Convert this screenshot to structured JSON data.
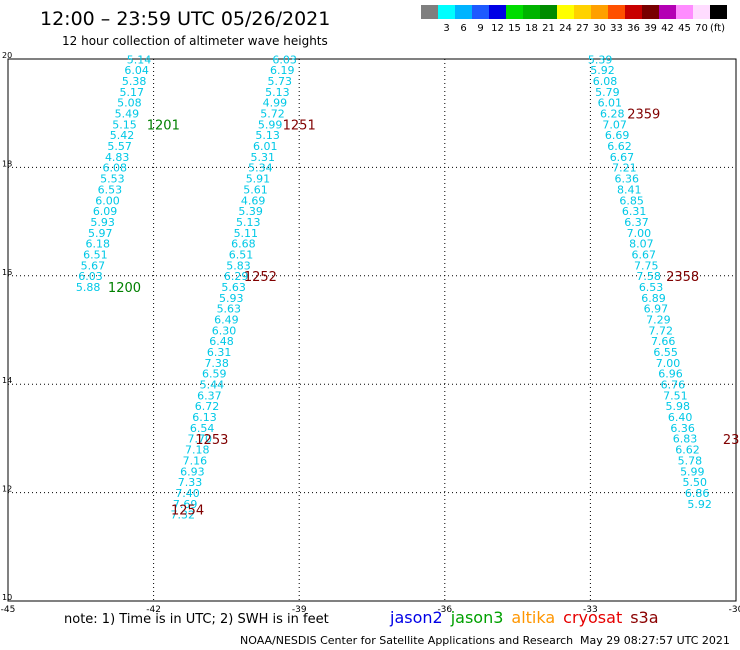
{
  "header": {
    "title": "12:00 – 23:59 UTC 05/26/2021",
    "subtitle": "12 hour collection of altimeter wave heights"
  },
  "colorbar": {
    "unit": "(ft)",
    "swatches": [
      {
        "color": "#7f7f7f",
        "label": ""
      },
      {
        "color": "#00ffff",
        "label": "3"
      },
      {
        "color": "#00b4ff",
        "label": "6"
      },
      {
        "color": "#1e5aff",
        "label": "9"
      },
      {
        "color": "#0000e6",
        "label": "12"
      },
      {
        "color": "#00dc00",
        "label": "15"
      },
      {
        "color": "#00b400",
        "label": "18"
      },
      {
        "color": "#008c00",
        "label": "21"
      },
      {
        "color": "#ffff00",
        "label": "24"
      },
      {
        "color": "#ffd200",
        "label": "27"
      },
      {
        "color": "#ffa000",
        "label": "30"
      },
      {
        "color": "#ff5000",
        "label": "33"
      },
      {
        "color": "#c80000",
        "label": "36"
      },
      {
        "color": "#780000",
        "label": "39"
      },
      {
        "color": "#b400b4",
        "label": "42"
      },
      {
        "color": "#ff8cff",
        "label": "45"
      },
      {
        "color": "#ffdcff",
        "label": "70"
      },
      {
        "color": "#000000",
        "label": ""
      }
    ]
  },
  "chart_data": {
    "type": "scatter",
    "xlim": [
      -45,
      -30
    ],
    "ylim": [
      10,
      20
    ],
    "xticks": [
      "-45",
      "-42",
      "-39",
      "-36",
      "-33",
      "-30"
    ],
    "yticks": [
      "10",
      "12",
      "14",
      "16",
      "18",
      "20"
    ],
    "grid": true,
    "value_color": "#00c8e6",
    "tracks": [
      {
        "points": [
          {
            "x": -42.3,
            "y": 19.92,
            "v": "5.14"
          },
          {
            "x": -42.35,
            "y": 19.72,
            "v": "6.04"
          },
          {
            "x": -42.4,
            "y": 19.52,
            "v": "5.38"
          },
          {
            "x": -42.45,
            "y": 19.32,
            "v": "5.17"
          },
          {
            "x": -42.5,
            "y": 19.12,
            "v": "5.08"
          },
          {
            "x": -42.55,
            "y": 18.92,
            "v": "5.49"
          },
          {
            "x": -42.6,
            "y": 18.72,
            "v": "5.15"
          },
          {
            "x": -42.65,
            "y": 18.52,
            "v": "5.42"
          },
          {
            "x": -42.7,
            "y": 18.32,
            "v": "5.57"
          },
          {
            "x": -42.75,
            "y": 18.12,
            "v": "4.83"
          },
          {
            "x": -42.8,
            "y": 17.92,
            "v": "6.08"
          },
          {
            "x": -42.85,
            "y": 17.72,
            "v": "5.53"
          },
          {
            "x": -42.9,
            "y": 17.52,
            "v": "6.53"
          },
          {
            "x": -42.95,
            "y": 17.32,
            "v": "6.00"
          },
          {
            "x": -43.0,
            "y": 17.12,
            "v": "6.09"
          },
          {
            "x": -43.05,
            "y": 16.92,
            "v": "5.93"
          },
          {
            "x": -43.1,
            "y": 16.72,
            "v": "5.97"
          },
          {
            "x": -43.15,
            "y": 16.52,
            "v": "6.18"
          },
          {
            "x": -43.2,
            "y": 16.32,
            "v": "6.51"
          },
          {
            "x": -43.25,
            "y": 16.12,
            "v": "5.67"
          },
          {
            "x": -43.3,
            "y": 15.92,
            "v": "6.03"
          },
          {
            "x": -43.35,
            "y": 15.72,
            "v": "5.88"
          }
        ]
      },
      {
        "points": [
          {
            "x": -39.3,
            "y": 19.92,
            "v": "6.03"
          },
          {
            "x": -39.35,
            "y": 19.72,
            "v": "6.19"
          },
          {
            "x": -39.4,
            "y": 19.52,
            "v": "5.73"
          },
          {
            "x": -39.45,
            "y": 19.32,
            "v": "5.13"
          },
          {
            "x": -39.5,
            "y": 19.12,
            "v": "4.99"
          },
          {
            "x": -39.55,
            "y": 18.92,
            "v": "5.72"
          },
          {
            "x": -39.6,
            "y": 18.72,
            "v": "5.99"
          },
          {
            "x": -39.65,
            "y": 18.52,
            "v": "5.13"
          },
          {
            "x": -39.7,
            "y": 18.32,
            "v": "6.01"
          },
          {
            "x": -39.75,
            "y": 18.12,
            "v": "5.31"
          },
          {
            "x": -39.8,
            "y": 17.92,
            "v": "5.34"
          },
          {
            "x": -39.85,
            "y": 17.72,
            "v": "5.91"
          },
          {
            "x": -39.9,
            "y": 17.52,
            "v": "5.61"
          },
          {
            "x": -39.95,
            "y": 17.32,
            "v": "4.69"
          },
          {
            "x": -40.0,
            "y": 17.12,
            "v": "5.39"
          },
          {
            "x": -40.05,
            "y": 16.92,
            "v": "5.13"
          },
          {
            "x": -40.1,
            "y": 16.72,
            "v": "5.11"
          },
          {
            "x": -40.15,
            "y": 16.52,
            "v": "6.68"
          },
          {
            "x": -40.2,
            "y": 16.32,
            "v": "6.51"
          },
          {
            "x": -40.25,
            "y": 16.12,
            "v": "5.83"
          },
          {
            "x": -40.3,
            "y": 15.92,
            "v": "6.29"
          },
          {
            "x": -40.35,
            "y": 15.72,
            "v": "5.63"
          },
          {
            "x": -40.4,
            "y": 15.52,
            "v": "5.93"
          },
          {
            "x": -40.45,
            "y": 15.32,
            "v": "5.63"
          },
          {
            "x": -40.5,
            "y": 15.12,
            "v": "6.49"
          },
          {
            "x": -40.55,
            "y": 14.92,
            "v": "6.30"
          },
          {
            "x": -40.6,
            "y": 14.72,
            "v": "6.48"
          },
          {
            "x": -40.65,
            "y": 14.52,
            "v": "6.31"
          },
          {
            "x": -40.7,
            "y": 14.32,
            "v": "7.38"
          },
          {
            "x": -40.75,
            "y": 14.12,
            "v": "6.59"
          },
          {
            "x": -40.8,
            "y": 13.92,
            "v": "5.44"
          },
          {
            "x": -40.85,
            "y": 13.72,
            "v": "6.37"
          },
          {
            "x": -40.9,
            "y": 13.52,
            "v": "6.72"
          },
          {
            "x": -40.95,
            "y": 13.32,
            "v": "6.13"
          },
          {
            "x": -41.0,
            "y": 13.12,
            "v": "6.54"
          },
          {
            "x": -41.05,
            "y": 12.92,
            "v": "7.70"
          },
          {
            "x": -41.1,
            "y": 12.72,
            "v": "7.18"
          },
          {
            "x": -41.15,
            "y": 12.52,
            "v": "7.16"
          },
          {
            "x": -41.2,
            "y": 12.32,
            "v": "6.93"
          },
          {
            "x": -41.25,
            "y": 12.12,
            "v": "7.33"
          },
          {
            "x": -41.3,
            "y": 11.92,
            "v": "7.40"
          },
          {
            "x": -41.35,
            "y": 11.72,
            "v": "7.69"
          },
          {
            "x": -41.4,
            "y": 11.52,
            "v": "7.32"
          }
        ]
      },
      {
        "points": [
          {
            "x": -32.8,
            "y": 19.92,
            "v": "5.39"
          },
          {
            "x": -32.75,
            "y": 19.72,
            "v": "5.92"
          },
          {
            "x": -32.7,
            "y": 19.52,
            "v": "6.08"
          },
          {
            "x": -32.65,
            "y": 19.32,
            "v": "5.79"
          },
          {
            "x": -32.6,
            "y": 19.12,
            "v": "6.01"
          },
          {
            "x": -32.55,
            "y": 18.92,
            "v": "6.28"
          },
          {
            "x": -32.5,
            "y": 18.72,
            "v": "7.07"
          },
          {
            "x": -32.45,
            "y": 18.52,
            "v": "6.69"
          },
          {
            "x": -32.4,
            "y": 18.32,
            "v": "6.62"
          },
          {
            "x": -32.35,
            "y": 18.12,
            "v": "6.67"
          },
          {
            "x": -32.3,
            "y": 17.92,
            "v": "7.21"
          },
          {
            "x": -32.25,
            "y": 17.72,
            "v": "6.36"
          },
          {
            "x": -32.2,
            "y": 17.52,
            "v": "8.41"
          },
          {
            "x": -32.15,
            "y": 17.32,
            "v": "6.85"
          },
          {
            "x": -32.1,
            "y": 17.12,
            "v": "6.31"
          },
          {
            "x": -32.05,
            "y": 16.92,
            "v": "6.37"
          },
          {
            "x": -32.0,
            "y": 16.72,
            "v": "7.00"
          },
          {
            "x": -31.95,
            "y": 16.52,
            "v": "8.07"
          },
          {
            "x": -31.9,
            "y": 16.32,
            "v": "6.67"
          },
          {
            "x": -31.85,
            "y": 16.12,
            "v": "7.75"
          },
          {
            "x": -31.8,
            "y": 15.92,
            "v": "7.58"
          },
          {
            "x": -31.75,
            "y": 15.72,
            "v": "6.53"
          },
          {
            "x": -31.7,
            "y": 15.52,
            "v": "6.89"
          },
          {
            "x": -31.65,
            "y": 15.32,
            "v": "6.97"
          },
          {
            "x": -31.6,
            "y": 15.12,
            "v": "7.29"
          },
          {
            "x": -31.55,
            "y": 14.92,
            "v": "7.72"
          },
          {
            "x": -31.5,
            "y": 14.72,
            "v": "7.66"
          },
          {
            "x": -31.45,
            "y": 14.52,
            "v": "6.55"
          },
          {
            "x": -31.4,
            "y": 14.32,
            "v": "7.00"
          },
          {
            "x": -31.35,
            "y": 14.12,
            "v": "6.96"
          },
          {
            "x": -31.3,
            "y": 13.92,
            "v": "6.76"
          },
          {
            "x": -31.25,
            "y": 13.72,
            "v": "7.51"
          },
          {
            "x": -31.2,
            "y": 13.52,
            "v": "5.98"
          },
          {
            "x": -31.15,
            "y": 13.32,
            "v": "6.40"
          },
          {
            "x": -31.1,
            "y": 13.12,
            "v": "6.36"
          },
          {
            "x": -31.05,
            "y": 12.92,
            "v": "6.83"
          },
          {
            "x": -31.0,
            "y": 12.72,
            "v": "6.62"
          },
          {
            "x": -30.95,
            "y": 12.52,
            "v": "5.78"
          },
          {
            "x": -30.9,
            "y": 12.32,
            "v": "5.99"
          },
          {
            "x": -30.85,
            "y": 12.12,
            "v": "5.50"
          },
          {
            "x": -30.8,
            "y": 11.92,
            "v": "6.86"
          },
          {
            "x": -30.75,
            "y": 11.72,
            "v": "5.92"
          }
        ]
      }
    ],
    "time_labels": [
      {
        "text": "1201",
        "x": -41.8,
        "y": 18.7,
        "color": "#008000"
      },
      {
        "text": "1200",
        "x": -42.6,
        "y": 15.7,
        "color": "#008000"
      },
      {
        "text": "1251",
        "x": -39.0,
        "y": 18.7,
        "color": "#800000"
      },
      {
        "text": "1252",
        "x": -39.8,
        "y": 15.9,
        "color": "#800000"
      },
      {
        "text": "1253",
        "x": -40.8,
        "y": 12.9,
        "color": "#800000"
      },
      {
        "text": "1254",
        "x": -41.3,
        "y": 11.6,
        "color": "#800000"
      },
      {
        "text": "2359",
        "x": -31.9,
        "y": 18.9,
        "color": "#800000"
      },
      {
        "text": "2358",
        "x": -31.1,
        "y": 15.9,
        "color": "#800000"
      },
      {
        "text": "23",
        "x": -30.1,
        "y": 12.9,
        "color": "#800000"
      }
    ]
  },
  "footer": {
    "note": "note:  1) Time is in UTC;  2) SWH is in feet",
    "legend": [
      {
        "name": "jason2",
        "color": "#0000e6"
      },
      {
        "name": "jason3",
        "color": "#00a000"
      },
      {
        "name": "altika",
        "color": "#ff9600"
      },
      {
        "name": "cryosat",
        "color": "#e60000"
      },
      {
        "name": "s3a",
        "color": "#8b0000"
      }
    ],
    "credit": "NOAA/NESDIS Center for Satellite Applications and Research",
    "timestamp": "May 29 08:27:57 UTC 2021"
  }
}
